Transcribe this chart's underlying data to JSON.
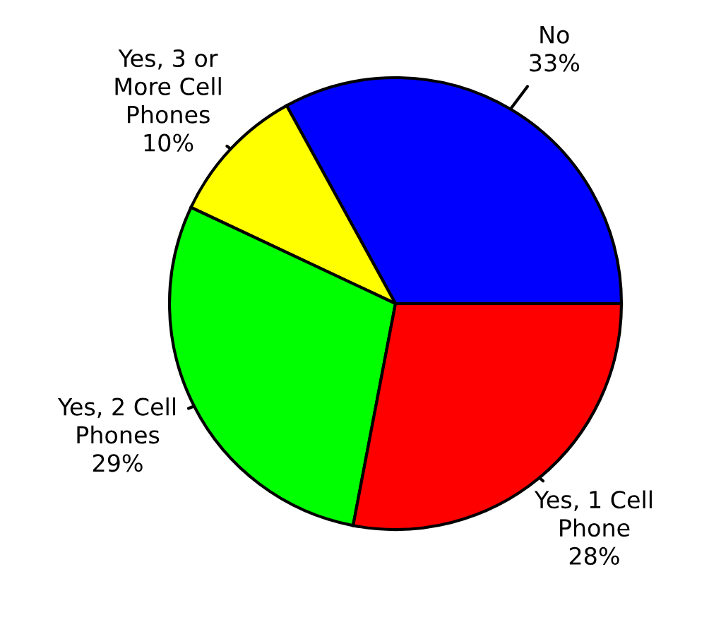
{
  "chart_data": {
    "type": "pie",
    "categories": [
      "No",
      "Yes, 1 Cell\nPhone",
      "Yes, 2 Cell\nPhones",
      "Yes, 3 or\nMore Cell\nPhones"
    ],
    "values": [
      33,
      28,
      29,
      10
    ],
    "value_labels": [
      "33%",
      "28%",
      "29%",
      "10%"
    ],
    "colors": [
      "#0000ff",
      "#ff0000",
      "#00ff00",
      "#ffff00"
    ],
    "legend": false
  }
}
